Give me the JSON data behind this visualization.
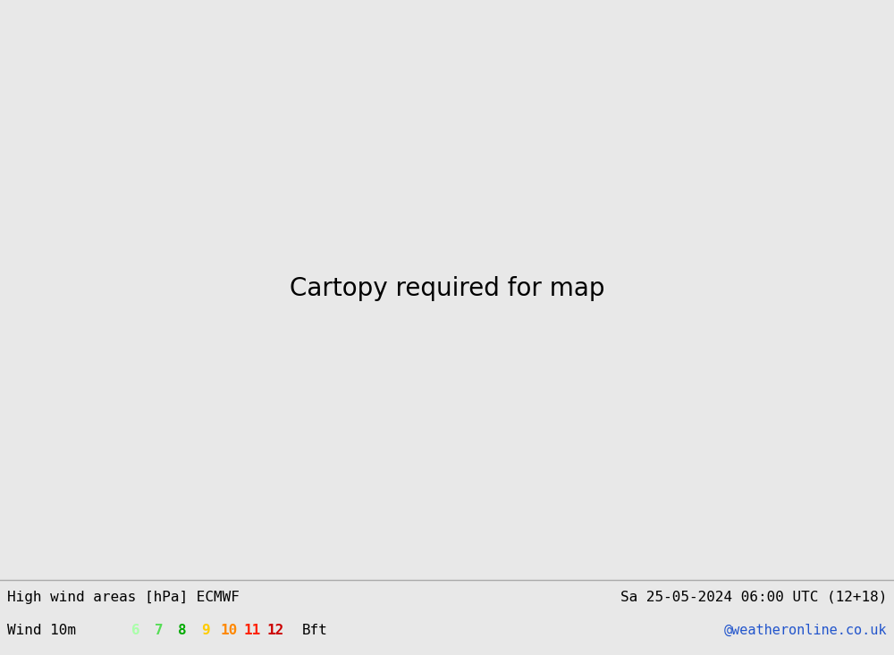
{
  "title_left": "High wind areas [hPa] ECMWF",
  "title_right": "Sa 25-05-2024 06:00 UTC (12+18)",
  "subtitle_left": "Wind 10m",
  "subtitle_right": "@weatheronline.co.uk",
  "legend_values": [
    "6",
    "7",
    "8",
    "9",
    "10",
    "11",
    "12"
  ],
  "legend_colors": [
    "#aaffaa",
    "#55dd55",
    "#00aa00",
    "#ffcc00",
    "#ff8800",
    "#ff2200",
    "#cc0000"
  ],
  "legend_suffix": "Bft",
  "bg_color": "#e8e8e8",
  "ocean_color": "#e0e0e8",
  "land_color": "#c8c8c8",
  "wind_light_green": "#c8ffb0",
  "wind_med_green": "#90ee90",
  "wind_dark_green": "#44cc44",
  "wind_bright_green": "#00dd00",
  "footer_bg": "#e8e8e8",
  "isobar_black": "#000000",
  "isobar_blue": "#0055ff",
  "isobar_red": "#ff0000",
  "map_extent": [
    -180,
    -55,
    10,
    85
  ],
  "figsize": [
    10.0,
    7.33
  ],
  "dpi": 100
}
